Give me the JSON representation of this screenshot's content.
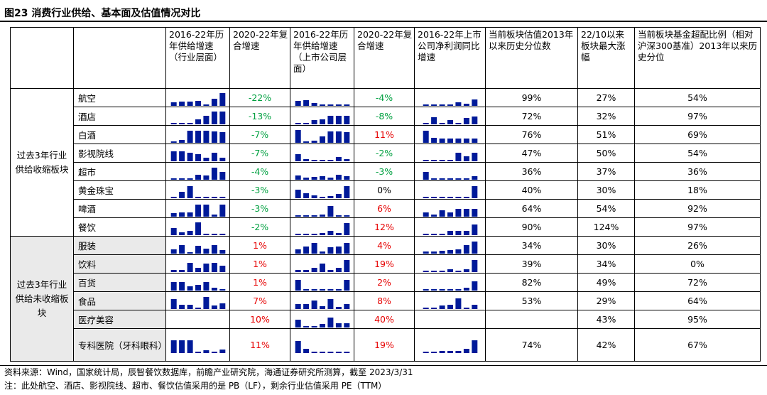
{
  "title": "图23 消费行业供给、基本面及估值情况对比",
  "headers": {
    "h1": "2016-22年历年供给增速（行业层面）",
    "h2": "2020-22年复合增速",
    "h3": "2016-22年历年供给增速（上市公司层面）",
    "h4": "2020-22年复合增速",
    "h5": "2016-22年上市公司净利润同比增速",
    "h6": "当前板块估值2013年以来历史分位数",
    "h7": "22/10以来板块最大涨幅",
    "h8": "当前板块基金超配比例（相对沪深300基准）2013年以来历史分位"
  },
  "groups": {
    "g1": "过去3年行业供给收缩板块",
    "g2": "过去3年行业供给未收缩板块"
  },
  "rows": [
    {
      "name": "航空",
      "ind_growth": "-22%",
      "ind_color": "neg",
      "co_growth": "-4%",
      "co_color": "neg",
      "valuation": "99%",
      "max_gain": "27%",
      "fund": "54%",
      "s1": [
        0.25,
        0.3,
        0.3,
        0.35,
        0.05,
        0.5,
        0.9
      ],
      "s2": [
        0.35,
        0.4,
        0.2,
        0.05,
        0.05,
        0.05,
        0.05
      ],
      "s3": [
        0.1,
        0.1,
        0.1,
        0.1,
        0.25,
        0.15,
        0.45
      ]
    },
    {
      "name": "酒店",
      "ind_growth": "-13%",
      "ind_color": "neg",
      "co_growth": "-8%",
      "co_color": "neg",
      "valuation": "72%",
      "max_gain": "32%",
      "fund": "97%",
      "s1": [
        0.1,
        0.1,
        0.1,
        0.35,
        0.6,
        0.9,
        0.9
      ],
      "s2": [
        0.1,
        0.1,
        0.3,
        0.35,
        0.6,
        0.6,
        0.6
      ],
      "s3": [
        0.1,
        0.5,
        0.1,
        0.3,
        0.1,
        0.45,
        0.55
      ]
    },
    {
      "name": "白酒",
      "ind_growth": "-7%",
      "ind_color": "neg",
      "co_growth": "11%",
      "co_color": "pos",
      "valuation": "76%",
      "max_gain": "51%",
      "fund": "69%",
      "s1": [
        0.1,
        0.2,
        0.85,
        0.85,
        0.85,
        0.8,
        0.75
      ],
      "s2": [
        0.9,
        0.1,
        0.15,
        0.45,
        0.8,
        0.8,
        0.75
      ],
      "s3": [
        0.85,
        0.35,
        0.3,
        0.3,
        0.3,
        0.3,
        0.3
      ]
    },
    {
      "name": "影视院线",
      "ind_growth": "-7%",
      "ind_color": "neg",
      "co_growth": "-2%",
      "co_color": "neg",
      "valuation": "47%",
      "max_gain": "50%",
      "fund": "54%",
      "s1": [
        0.7,
        0.7,
        0.6,
        0.5,
        0.25,
        0.6,
        0.25
      ],
      "s2": [
        0.5,
        0.15,
        0.1,
        0.1,
        0.1,
        0.3,
        0.15
      ],
      "s3": [
        0.1,
        0.1,
        0.1,
        0.1,
        0.6,
        0.35,
        0.6
      ]
    },
    {
      "name": "超市",
      "ind_growth": "-4%",
      "ind_color": "neg",
      "co_growth": "-3%",
      "co_color": "neg",
      "valuation": "36%",
      "max_gain": "37%",
      "fund": "36%",
      "s1": [
        0.1,
        0.05,
        0.1,
        0.35,
        0.3,
        0.85,
        0.55
      ],
      "s2": [
        0.3,
        0.15,
        0.2,
        0.25,
        0.15,
        0.35,
        0.25
      ],
      "s3": [
        0.55,
        0.1,
        0.1,
        0.1,
        0.05,
        0.05,
        0.25
      ]
    },
    {
      "name": "黄金珠宝",
      "ind_growth": "-3%",
      "ind_color": "neg",
      "co_growth": "0%",
      "co_color": "neu",
      "valuation": "40%",
      "max_gain": "30%",
      "fund": "18%",
      "s1": [
        0.1,
        0.45,
        0.85,
        0.1,
        0.1,
        0.1,
        0.1
      ],
      "s2": [
        0.6,
        0.35,
        0.2,
        0.1,
        0.15,
        0.3,
        0.85
      ],
      "s3": [
        0.1,
        0.1,
        0.1,
        0.1,
        0.1,
        0.1,
        0.85
      ]
    },
    {
      "name": "啤酒",
      "ind_growth": "-3%",
      "ind_color": "neg",
      "co_growth": "6%",
      "co_color": "pos",
      "valuation": "64%",
      "max_gain": "54%",
      "fund": "92%",
      "s1": [
        0.25,
        0.3,
        0.3,
        0.85,
        0.85,
        0.15,
        0.85
      ],
      "s2": [
        0.1,
        0.1,
        0.1,
        0.15,
        0.75,
        0.1,
        0.1
      ],
      "s3": [
        0.3,
        0.15,
        0.45,
        0.3,
        0.55,
        0.55,
        0.55
      ]
    },
    {
      "name": "餐饮",
      "ind_growth": "-2%",
      "ind_color": "neg",
      "co_growth": "12%",
      "co_color": "pos",
      "valuation": "90%",
      "max_gain": "124%",
      "fund": "97%",
      "s1": [
        0.5,
        0.2,
        0.3,
        0.9,
        0.05,
        0.1,
        0.05
      ],
      "s2": [
        0.1,
        0.1,
        0.1,
        0.15,
        0.3,
        0.15,
        0.85
      ],
      "s3": [
        0.1,
        0.1,
        0.1,
        0.3,
        0.3,
        0.3,
        0.75
      ]
    },
    {
      "name": "服装",
      "ind_growth": "1%",
      "ind_color": "pos",
      "co_growth": "4%",
      "co_color": "pos",
      "valuation": "34%",
      "max_gain": "30%",
      "fund": "26%",
      "s1": [
        0.3,
        0.6,
        0.1,
        0.55,
        0.35,
        0.6,
        0.25
      ],
      "s2": [
        0.3,
        0.5,
        0.75,
        0.15,
        0.45,
        0.5,
        0.75
      ],
      "s3": [
        0.15,
        0.15,
        0.2,
        0.25,
        0.3,
        0.6,
        0.85
      ]
    },
    {
      "name": "饮料",
      "ind_growth": "1%",
      "ind_color": "pos",
      "co_growth": "19%",
      "co_color": "pos",
      "valuation": "39%",
      "max_gain": "34%",
      "fund": "0%",
      "s1": [
        0.15,
        0.15,
        0.65,
        0.3,
        0.6,
        0.65,
        0.45
      ],
      "s2": [
        0.15,
        0.15,
        0.3,
        0.6,
        0.15,
        0.3,
        0.85
      ],
      "s3": [
        0.1,
        0.1,
        0.1,
        0.2,
        0.1,
        0.2,
        0.85
      ]
    },
    {
      "name": "百货",
      "ind_growth": "1%",
      "ind_color": "pos",
      "co_growth": "2%",
      "co_color": "pos",
      "valuation": "82%",
      "max_gain": "49%",
      "fund": "72%",
      "s1": [
        0.6,
        0.6,
        0.3,
        0.4,
        0.6,
        0.2,
        0.1
      ],
      "s2": [
        0.75,
        0.1,
        0.1,
        0.1,
        0.1,
        0.1,
        0.75
      ],
      "s3": [
        0.05,
        0.05,
        0.05,
        0.05,
        0.1,
        0.2,
        0.65
      ]
    },
    {
      "name": "食品",
      "ind_growth": "7%",
      "ind_color": "pos",
      "co_growth": "8%",
      "co_color": "pos",
      "valuation": "53%",
      "max_gain": "29%",
      "fund": "64%",
      "s1": [
        0.7,
        0.3,
        0.3,
        0.1,
        0.85,
        0.25,
        0.4
      ],
      "s2": [
        0.35,
        0.35,
        0.6,
        0.2,
        0.7,
        0.15,
        0.35
      ],
      "s3": [
        0.1,
        0.1,
        0.25,
        0.3,
        0.75,
        0.1,
        0.3
      ]
    },
    {
      "name": "医疗美容",
      "ind_growth": "10%",
      "ind_color": "pos",
      "co_growth": "40%",
      "co_color": "pos",
      "valuation": "",
      "max_gain": "43%",
      "fund": "95%",
      "s1": [
        0,
        0,
        0,
        0,
        0,
        0,
        0
      ],
      "s2": [
        0.55,
        0.1,
        0.1,
        0.25,
        0.7,
        0.3,
        0.3
      ],
      "s3": [
        0,
        0,
        0,
        0,
        0,
        0,
        0
      ]
    },
    {
      "name": "专科医院（牙科眼科）",
      "ind_growth": "11%",
      "ind_color": "pos",
      "co_growth": "19%",
      "co_color": "pos",
      "valuation": "74%",
      "max_gain": "42%",
      "fund": "67%",
      "s1": [
        0.9,
        0.9,
        0.9,
        0.1,
        0.2,
        0.1,
        0.25
      ],
      "s2": [
        0.85,
        0.3,
        0.1,
        0.1,
        0.1,
        0.1,
        0.1
      ],
      "s3": [
        0.1,
        0.1,
        0.15,
        0.15,
        0.15,
        0.3,
        0.9
      ]
    }
  ],
  "notes": {
    "source": "资料来源：Wind，国家统计局，辰智餐饮数据库，前瞻产业研究院，海通证券研究所测算，截至 2023/3/31",
    "note": "注：此处航空、酒店、影视院线、超市、餐饮估值采用的是 PB（LF），剩余行业估值采用 PE（TTM）"
  },
  "colors": {
    "bar": "#001a99",
    "pos": "#e60000",
    "neg": "#00a040",
    "shade": "#eaeaea"
  }
}
